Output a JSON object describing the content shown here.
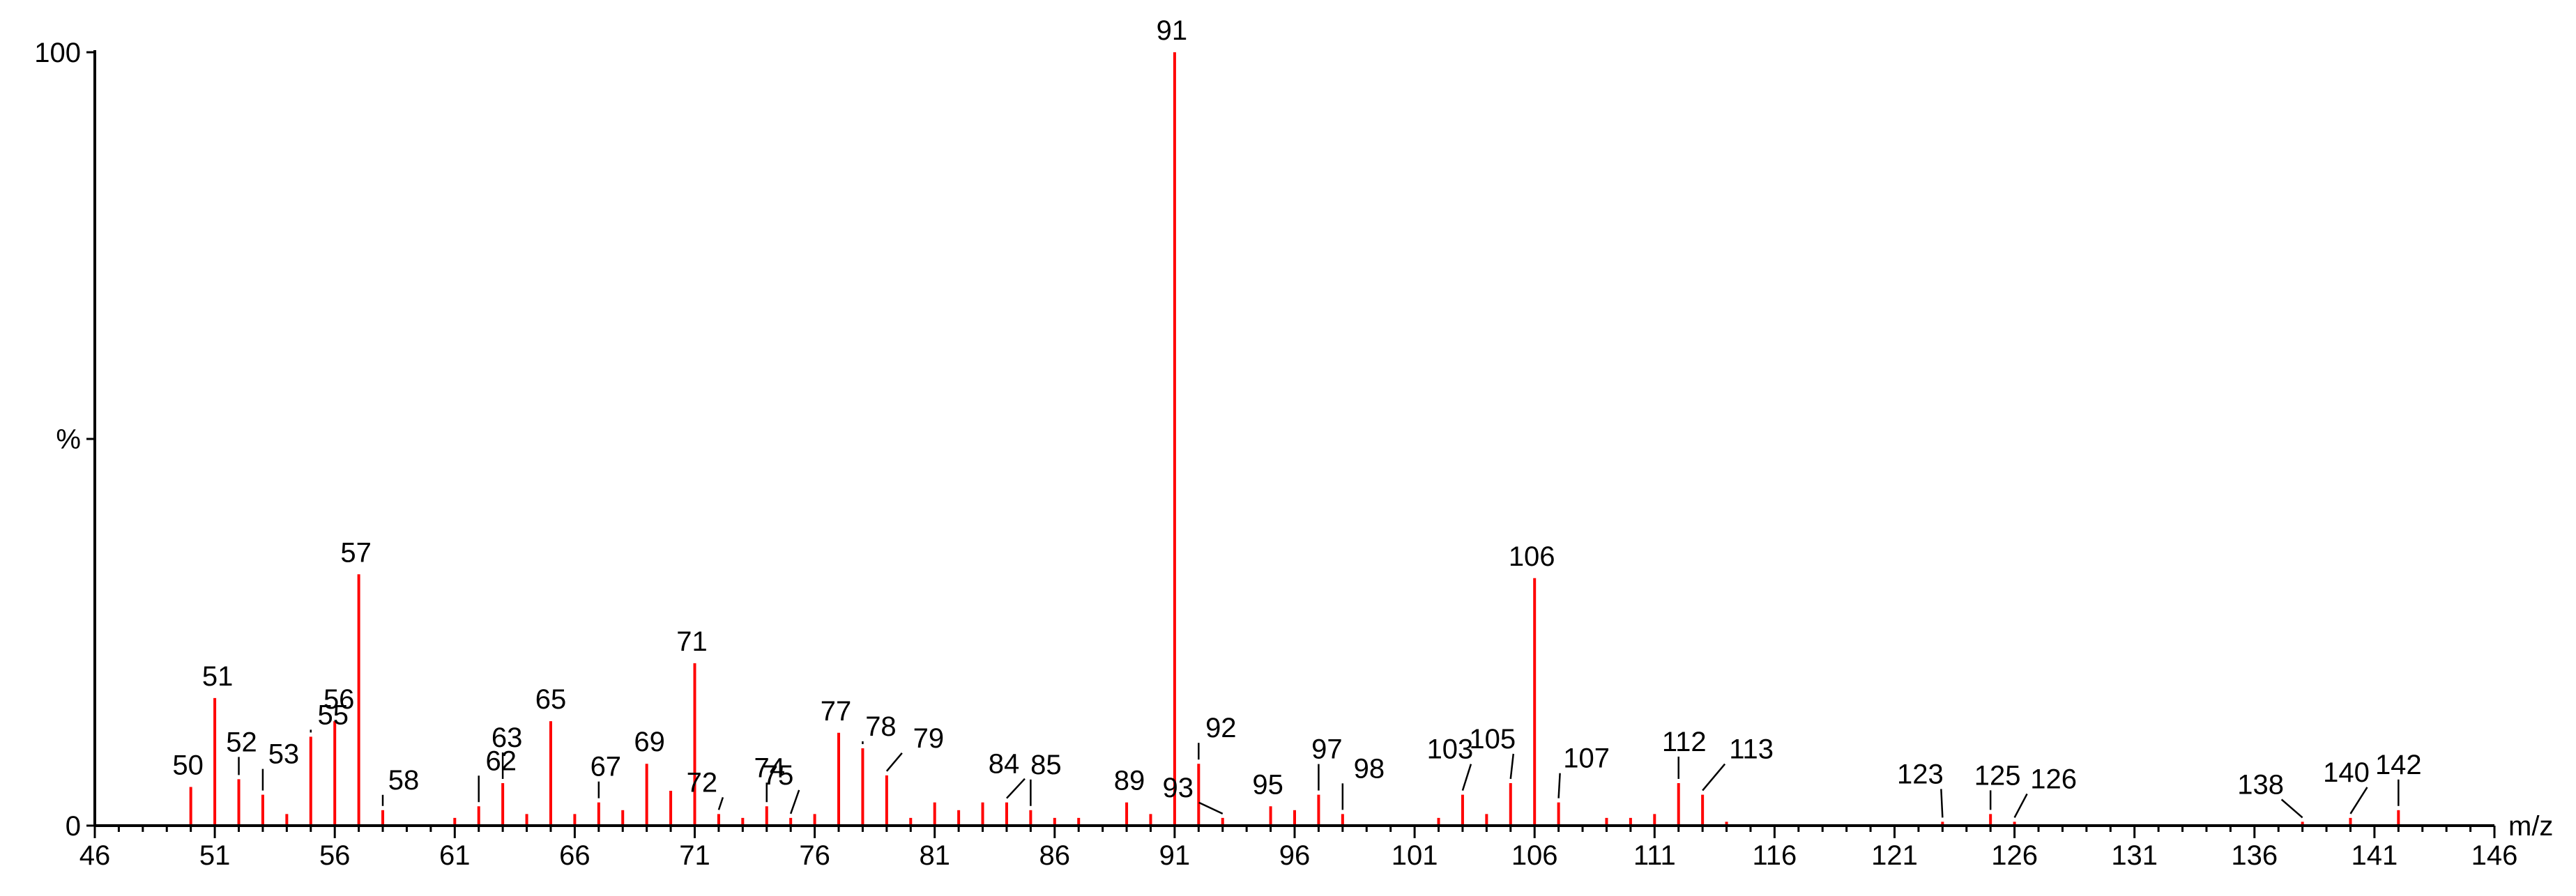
{
  "chart_data": {
    "type": "bar",
    "title": "",
    "xlabel": "m/z",
    "ylabel": "%",
    "xlim": [
      46,
      146
    ],
    "ylim": [
      0,
      100
    ],
    "grid": false,
    "bar_color": "#ff0000",
    "x_ticks": [
      46,
      51,
      56,
      61,
      66,
      71,
      76,
      81,
      86,
      91,
      96,
      101,
      106,
      111,
      116,
      121,
      126,
      131,
      136,
      141,
      146
    ],
    "y_ticks": [
      {
        "value": 0,
        "label": "0"
      },
      {
        "value": 50,
        "label": "%"
      },
      {
        "value": 100,
        "label": "100"
      }
    ],
    "peaks": [
      {
        "mz": 50,
        "intensity": 5,
        "label": "50"
      },
      {
        "mz": 51,
        "intensity": 16.5,
        "label": "51"
      },
      {
        "mz": 52,
        "intensity": 6,
        "label": "52"
      },
      {
        "mz": 53,
        "intensity": 4,
        "label": "53"
      },
      {
        "mz": 54,
        "intensity": 1.5,
        "label": ""
      },
      {
        "mz": 55,
        "intensity": 11.5,
        "label": "55"
      },
      {
        "mz": 56,
        "intensity": 13.5,
        "label": "56"
      },
      {
        "mz": 57,
        "intensity": 32.5,
        "label": "57"
      },
      {
        "mz": 58,
        "intensity": 2,
        "label": "58"
      },
      {
        "mz": 61,
        "intensity": 1,
        "label": ""
      },
      {
        "mz": 62,
        "intensity": 2.5,
        "label": "62"
      },
      {
        "mz": 63,
        "intensity": 5.5,
        "label": "63"
      },
      {
        "mz": 64,
        "intensity": 1.5,
        "label": ""
      },
      {
        "mz": 65,
        "intensity": 13.5,
        "label": "65"
      },
      {
        "mz": 66,
        "intensity": 1.5,
        "label": ""
      },
      {
        "mz": 67,
        "intensity": 3,
        "label": "67"
      },
      {
        "mz": 68,
        "intensity": 2,
        "label": ""
      },
      {
        "mz": 69,
        "intensity": 8,
        "label": "69"
      },
      {
        "mz": 70,
        "intensity": 4.5,
        "label": ""
      },
      {
        "mz": 71,
        "intensity": 21,
        "label": "71"
      },
      {
        "mz": 72,
        "intensity": 1.5,
        "label": "72"
      },
      {
        "mz": 73,
        "intensity": 1,
        "label": ""
      },
      {
        "mz": 74,
        "intensity": 2.5,
        "label": "74"
      },
      {
        "mz": 75,
        "intensity": 1,
        "label": "75"
      },
      {
        "mz": 76,
        "intensity": 1.5,
        "label": ""
      },
      {
        "mz": 77,
        "intensity": 12,
        "label": "77"
      },
      {
        "mz": 78,
        "intensity": 10,
        "label": "78"
      },
      {
        "mz": 79,
        "intensity": 6.5,
        "label": "79"
      },
      {
        "mz": 80,
        "intensity": 1,
        "label": ""
      },
      {
        "mz": 81,
        "intensity": 3,
        "label": ""
      },
      {
        "mz": 82,
        "intensity": 2,
        "label": ""
      },
      {
        "mz": 83,
        "intensity": 3,
        "label": ""
      },
      {
        "mz": 84,
        "intensity": 3,
        "label": "84"
      },
      {
        "mz": 85,
        "intensity": 2,
        "label": "85"
      },
      {
        "mz": 86,
        "intensity": 1,
        "label": ""
      },
      {
        "mz": 87,
        "intensity": 1,
        "label": ""
      },
      {
        "mz": 89,
        "intensity": 3,
        "label": "89"
      },
      {
        "mz": 90,
        "intensity": 1.5,
        "label": ""
      },
      {
        "mz": 91,
        "intensity": 100,
        "label": "91"
      },
      {
        "mz": 92,
        "intensity": 8,
        "label": "92"
      },
      {
        "mz": 93,
        "intensity": 1,
        "label": "93"
      },
      {
        "mz": 95,
        "intensity": 2.5,
        "label": "95"
      },
      {
        "mz": 96,
        "intensity": 2,
        "label": ""
      },
      {
        "mz": 97,
        "intensity": 4,
        "label": "97"
      },
      {
        "mz": 98,
        "intensity": 1.5,
        "label": "98"
      },
      {
        "mz": 102,
        "intensity": 1,
        "label": ""
      },
      {
        "mz": 103,
        "intensity": 4,
        "label": "103"
      },
      {
        "mz": 104,
        "intensity": 1.5,
        "label": ""
      },
      {
        "mz": 105,
        "intensity": 5.5,
        "label": "105"
      },
      {
        "mz": 106,
        "intensity": 32,
        "label": "106"
      },
      {
        "mz": 107,
        "intensity": 3,
        "label": "107"
      },
      {
        "mz": 109,
        "intensity": 1,
        "label": ""
      },
      {
        "mz": 110,
        "intensity": 1,
        "label": ""
      },
      {
        "mz": 111,
        "intensity": 1.5,
        "label": ""
      },
      {
        "mz": 112,
        "intensity": 5.5,
        "label": "112"
      },
      {
        "mz": 113,
        "intensity": 4,
        "label": "113"
      },
      {
        "mz": 114,
        "intensity": 0.5,
        "label": ""
      },
      {
        "mz": 123,
        "intensity": 0.5,
        "label": "123"
      },
      {
        "mz": 125,
        "intensity": 1.5,
        "label": "125"
      },
      {
        "mz": 126,
        "intensity": 0.5,
        "label": "126"
      },
      {
        "mz": 138,
        "intensity": 0.5,
        "label": "138"
      },
      {
        "mz": 140,
        "intensity": 1,
        "label": "140"
      },
      {
        "mz": 142,
        "intensity": 2,
        "label": "142"
      }
    ]
  }
}
